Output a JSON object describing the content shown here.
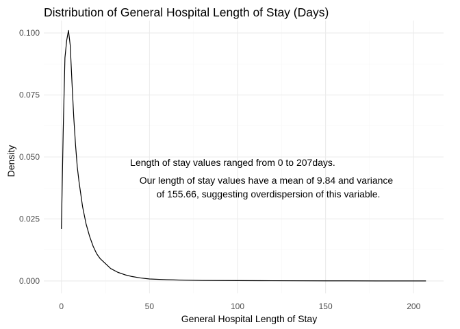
{
  "chart_data": {
    "type": "line",
    "title": "Distribution of General Hospital Length of Stay (Days)",
    "xlabel": "General Hospital Length of Stay",
    "ylabel": "Density",
    "xlim": [
      -10,
      217
    ],
    "ylim": [
      -0.005,
      0.105
    ],
    "x_ticks": [
      0,
      50,
      100,
      150,
      200
    ],
    "x_tick_labels": [
      "0",
      "50",
      "100",
      "150",
      "200"
    ],
    "y_ticks": [
      0.0,
      0.025,
      0.05,
      0.075,
      0.1
    ],
    "y_tick_labels": [
      "0.000",
      "0.025",
      "0.050",
      "0.075",
      "0.100"
    ],
    "grid": true,
    "series": [
      {
        "x": [
          0,
          1,
          2,
          3,
          4,
          5,
          6,
          7,
          8,
          9,
          10,
          12,
          14,
          16,
          18,
          20,
          22,
          25,
          28,
          32,
          36,
          40,
          45,
          50,
          60,
          70,
          80,
          100,
          120,
          150,
          180,
          207
        ],
        "y": [
          0.021,
          0.06,
          0.09,
          0.097,
          0.101,
          0.095,
          0.08,
          0.066,
          0.055,
          0.046,
          0.04,
          0.03,
          0.023,
          0.018,
          0.014,
          0.011,
          0.009,
          0.007,
          0.005,
          0.0035,
          0.0025,
          0.0018,
          0.0012,
          0.0008,
          0.0005,
          0.0003,
          0.0002,
          0.00015,
          0.0001,
          5e-05,
          2e-05,
          1e-05
        ]
      }
    ],
    "annotations": [
      "Length of stay values ranged from 0 to 207days.",
      "Our length of stay values have a mean of 9.84 and variance",
      "of 155.66, suggesting overdispersion of this variable."
    ]
  }
}
